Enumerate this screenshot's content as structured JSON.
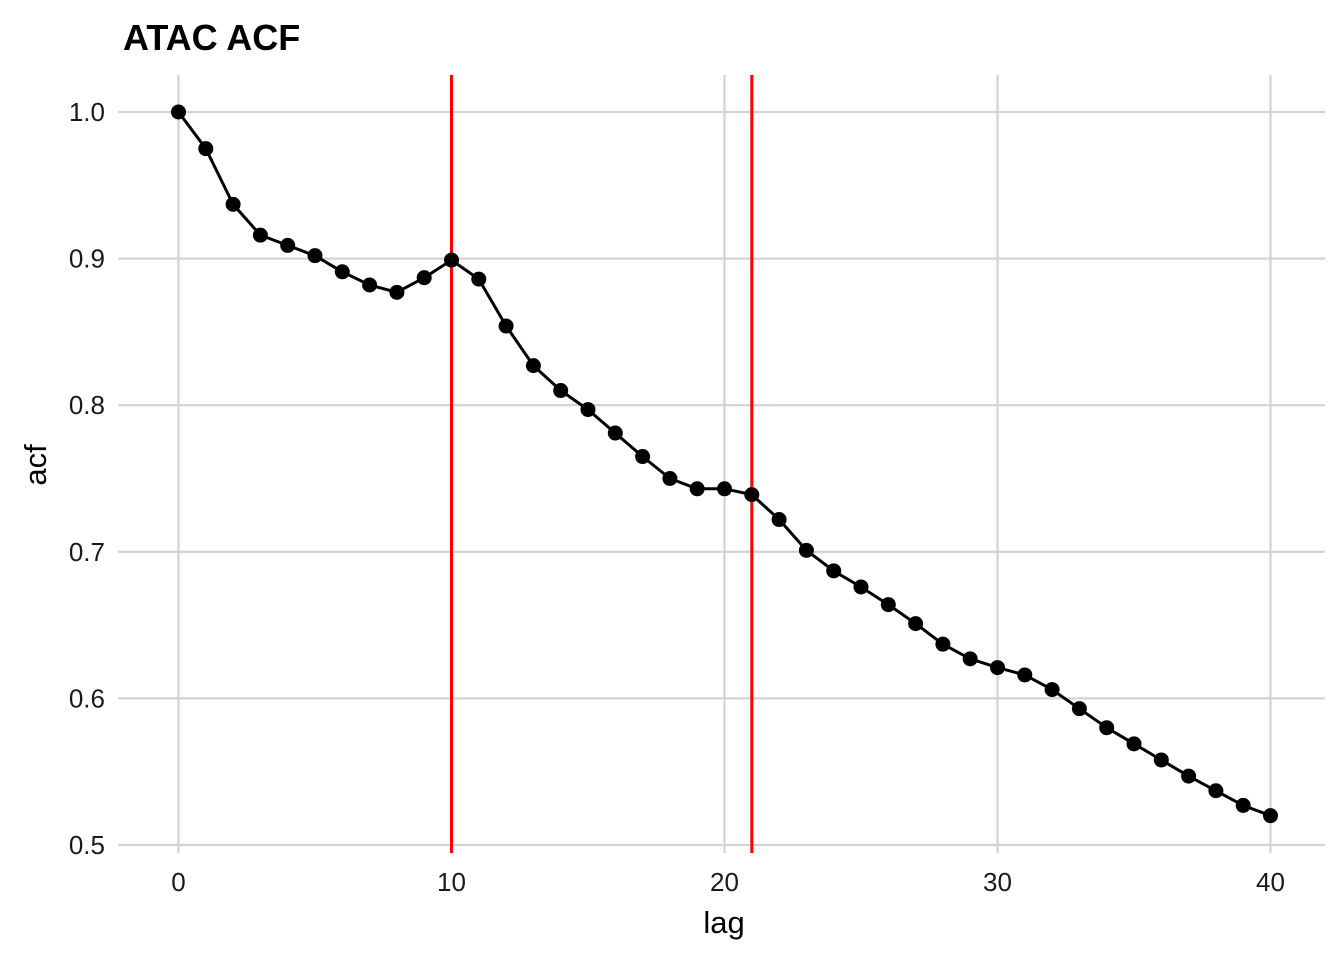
{
  "chart_data": {
    "type": "line",
    "title": "ATAC ACF",
    "xlabel": "lag",
    "ylabel": "acf",
    "xlim": [
      -2.2,
      41.2
    ],
    "ylim": [
      0.5,
      1.0
    ],
    "x_ticks": [
      0,
      10,
      20,
      30,
      40
    ],
    "x_tick_labels": [
      "0",
      "10",
      "20",
      "30",
      "40"
    ],
    "y_ticks": [
      0.5,
      0.6,
      0.7,
      0.8,
      0.9,
      1.0
    ],
    "y_tick_labels": [
      "0.5",
      "0.6",
      "0.7",
      "0.8",
      "0.9",
      "1.0"
    ],
    "grid": true,
    "series": [
      {
        "x": [
          0,
          1,
          2,
          3,
          4,
          5,
          6,
          7,
          8,
          9,
          10,
          11,
          12,
          13,
          14,
          15,
          16,
          17,
          18,
          19,
          20,
          21,
          22,
          23,
          24,
          25,
          26,
          27,
          28,
          29,
          30,
          31,
          32,
          33,
          34,
          35,
          36,
          37,
          38,
          39,
          40
        ],
        "values": [
          1.0,
          0.975,
          0.937,
          0.916,
          0.909,
          0.902,
          0.891,
          0.882,
          0.877,
          0.887,
          0.899,
          0.886,
          0.854,
          0.827,
          0.81,
          0.797,
          0.781,
          0.765,
          0.75,
          0.743,
          0.743,
          0.739,
          0.722,
          0.701,
          0.687,
          0.676,
          0.664,
          0.651,
          0.637,
          0.627,
          0.621,
          0.616,
          0.606,
          0.593,
          0.58,
          0.569,
          0.558,
          0.547,
          0.537,
          0.527,
          0.52
        ],
        "color": "#000000",
        "marker": "circle"
      }
    ],
    "vlines": [
      {
        "x": 10,
        "color": "#ff0000"
      },
      {
        "x": 21,
        "color": "#ff0000"
      }
    ]
  }
}
